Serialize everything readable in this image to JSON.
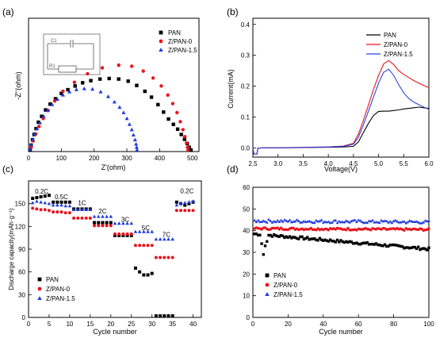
{
  "colors": {
    "PAN": "#000000",
    "Z/PAN-0": "#e8141c",
    "Z/PAN-1.5": "#1f3ad9",
    "CV_PAN": "#000000",
    "CV_Z/PAN-0": "#e8141c",
    "CV_Z/PAN-1.5": "#2b45e0"
  },
  "chart_data": [
    {
      "panel_label": "(a)",
      "type": "scatter",
      "xlabel": "Z'(ohm)",
      "ylabel": "-Z''(ohm)",
      "xlim": [
        0,
        520
      ],
      "ylim": [
        0,
        250
      ],
      "xticks": [
        0,
        100,
        200,
        300,
        400,
        500
      ],
      "yticks": [],
      "legend_position": "top-right",
      "inset_labels": [
        "C1",
        "R1"
      ],
      "series": [
        {
          "name": "PAN",
          "marker": "square",
          "points": [
            [
              5,
              3
            ],
            [
              8,
              12
            ],
            [
              12,
              22
            ],
            [
              17,
              32
            ],
            [
              23,
              43
            ],
            [
              30,
              55
            ],
            [
              40,
              66
            ],
            [
              52,
              78
            ],
            [
              66,
              89
            ],
            [
              82,
              99
            ],
            [
              100,
              109
            ],
            [
              120,
              116
            ],
            [
              142,
              123
            ],
            [
              165,
              129
            ],
            [
              190,
              133
            ],
            [
              218,
              136
            ],
            [
              246,
              137
            ],
            [
              275,
              136
            ],
            [
              304,
              132
            ],
            [
              330,
              124
            ],
            [
              355,
              113
            ],
            [
              375,
              102
            ],
            [
              395,
              88
            ],
            [
              412,
              74
            ],
            [
              427,
              61
            ],
            [
              442,
              51
            ],
            [
              455,
              42
            ],
            [
              466,
              32
            ],
            [
              476,
              23
            ],
            [
              484,
              15
            ],
            [
              490,
              8
            ],
            [
              494,
              3
            ]
          ]
        },
        {
          "name": "Z/PAN-0",
          "marker": "circle",
          "points": [
            [
              8,
              8
            ],
            [
              14,
              20
            ],
            [
              22,
              33
            ],
            [
              32,
              47
            ],
            [
              45,
              62
            ],
            [
              60,
              77
            ],
            [
              80,
              95
            ],
            [
              105,
              113
            ],
            [
              140,
              130
            ],
            [
              180,
              146
            ],
            [
              225,
              157
            ],
            [
              275,
              162
            ],
            [
              315,
              160
            ],
            [
              350,
              151
            ],
            [
              380,
              138
            ],
            [
              405,
              123
            ],
            [
              425,
              106
            ],
            [
              440,
              90
            ],
            [
              453,
              73
            ],
            [
              463,
              56
            ],
            [
              471,
              41
            ],
            [
              477,
              28
            ],
            [
              482,
              16
            ],
            [
              485,
              8
            ],
            [
              487,
              3
            ]
          ]
        },
        {
          "name": "Z/PAN-1.5",
          "marker": "triangle",
          "points": [
            [
              4,
              4
            ],
            [
              8,
              13
            ],
            [
              13,
              23
            ],
            [
              19,
              33
            ],
            [
              26,
              43
            ],
            [
              35,
              54
            ],
            [
              46,
              66
            ],
            [
              58,
              77
            ],
            [
              72,
              88
            ],
            [
              88,
              98
            ],
            [
              105,
              106
            ],
            [
              125,
              112
            ],
            [
              146,
              116
            ],
            [
              170,
              118
            ],
            [
              195,
              117
            ],
            [
              220,
              112
            ],
            [
              243,
              103
            ],
            [
              262,
              93
            ],
            [
              278,
              83
            ],
            [
              290,
              73
            ],
            [
              300,
              62
            ],
            [
              308,
              51
            ],
            [
              315,
              41
            ],
            [
              320,
              31
            ],
            [
              325,
              22
            ],
            [
              328,
              14
            ],
            [
              330,
              8
            ],
            [
              331,
              3
            ]
          ]
        }
      ]
    },
    {
      "panel_label": "(b)",
      "type": "line",
      "xlabel": "Voltage(V)",
      "ylabel": "Current(mA)",
      "xlim": [
        2.5,
        6.0
      ],
      "ylim": [
        -0.03,
        0.42
      ],
      "xticks": [
        2.5,
        3.0,
        3.5,
        4.0,
        4.5,
        5.0,
        5.5,
        6.0
      ],
      "yticks": [
        0.0,
        0.1,
        0.2,
        0.3,
        0.4
      ],
      "legend_position": "top-left",
      "series": [
        {
          "name": "PAN",
          "points": [
            [
              2.5,
              0
            ],
            [
              2.52,
              -0.02
            ],
            [
              2.58,
              -0.02
            ],
            [
              2.6,
              -0.001
            ],
            [
              2.7,
              0.0
            ],
            [
              3.0,
              0.0
            ],
            [
              3.5,
              0.001
            ],
            [
              4.0,
              0.002
            ],
            [
              4.3,
              0.003
            ],
            [
              4.5,
              0.005
            ],
            [
              4.6,
              0.02
            ],
            [
              4.7,
              0.05
            ],
            [
              4.8,
              0.08
            ],
            [
              4.9,
              0.105
            ],
            [
              5.0,
              0.118
            ],
            [
              5.1,
              0.119
            ],
            [
              5.2,
              0.119
            ],
            [
              5.3,
              0.121
            ],
            [
              5.4,
              0.123
            ],
            [
              5.5,
              0.126
            ],
            [
              5.6,
              0.128
            ],
            [
              5.7,
              0.13
            ],
            [
              5.8,
              0.132
            ],
            [
              5.9,
              0.13
            ],
            [
              6.0,
              0.128
            ]
          ]
        },
        {
          "name": "Z/PAN-0",
          "points": [
            [
              2.5,
              0
            ],
            [
              2.52,
              -0.02
            ],
            [
              2.58,
              -0.02
            ],
            [
              2.6,
              -0.001
            ],
            [
              2.7,
              0.0
            ],
            [
              3.0,
              0.0
            ],
            [
              3.5,
              0.002
            ],
            [
              4.0,
              0.003
            ],
            [
              4.3,
              0.006
            ],
            [
              4.5,
              0.015
            ],
            [
              4.6,
              0.045
            ],
            [
              4.7,
              0.09
            ],
            [
              4.8,
              0.14
            ],
            [
              4.9,
              0.19
            ],
            [
              5.0,
              0.235
            ],
            [
              5.1,
              0.272
            ],
            [
              5.2,
              0.283
            ],
            [
              5.3,
              0.27
            ],
            [
              5.4,
              0.25
            ],
            [
              5.5,
              0.238
            ],
            [
              5.6,
              0.228
            ],
            [
              5.7,
              0.218
            ],
            [
              5.8,
              0.21
            ],
            [
              5.9,
              0.202
            ],
            [
              6.0,
              0.195
            ]
          ]
        },
        {
          "name": "Z/PAN-1.5",
          "points": [
            [
              2.5,
              0
            ],
            [
              2.52,
              -0.02
            ],
            [
              2.58,
              -0.02
            ],
            [
              2.6,
              -0.001
            ],
            [
              2.7,
              0.0
            ],
            [
              3.0,
              0.0
            ],
            [
              3.5,
              0.001
            ],
            [
              4.0,
              0.003
            ],
            [
              4.3,
              0.005
            ],
            [
              4.5,
              0.012
            ],
            [
              4.6,
              0.035
            ],
            [
              4.7,
              0.075
            ],
            [
              4.8,
              0.12
            ],
            [
              4.9,
              0.165
            ],
            [
              5.0,
              0.21
            ],
            [
              5.1,
              0.245
            ],
            [
              5.2,
              0.255
            ],
            [
              5.3,
              0.235
            ],
            [
              5.4,
              0.205
            ],
            [
              5.5,
              0.178
            ],
            [
              5.6,
              0.16
            ],
            [
              5.7,
              0.148
            ],
            [
              5.8,
              0.14
            ],
            [
              5.9,
              0.132
            ],
            [
              6.0,
              0.125
            ]
          ]
        }
      ]
    },
    {
      "panel_label": "(c)",
      "type": "scatter",
      "xlabel": "Cycle number",
      "ylabel": "Discharge capacity(mAh·g⁻¹)",
      "xlim": [
        0,
        42
      ],
      "ylim": [
        0,
        180
      ],
      "xticks": [
        0,
        5,
        10,
        15,
        20,
        25,
        30,
        35,
        40
      ],
      "yticks": [
        0,
        30,
        60,
        90,
        120,
        150
      ],
      "legend_position": "bottom-left",
      "annotations": [
        {
          "text": "0.2C",
          "x": 3.2,
          "y": 163
        },
        {
          "text": "0.5C",
          "x": 8.0,
          "y": 156
        },
        {
          "text": "1C",
          "x": 13.0,
          "y": 148
        },
        {
          "text": "2C",
          "x": 18.0,
          "y": 137
        },
        {
          "text": "3C",
          "x": 23.5,
          "y": 126
        },
        {
          "text": "5C",
          "x": 28.5,
          "y": 115
        },
        {
          "text": "7C",
          "x": 33.5,
          "y": 106
        },
        {
          "text": "0.2C",
          "x": 38.5,
          "y": 164
        }
      ],
      "series": [
        {
          "name": "PAN",
          "marker": "square",
          "x": [
            1,
            2,
            3,
            4,
            5,
            6,
            7,
            8,
            9,
            10,
            11,
            12,
            13,
            14,
            15,
            16,
            17,
            18,
            19,
            20,
            21,
            22,
            23,
            24,
            25,
            26,
            27,
            28,
            29,
            30,
            31,
            32,
            33,
            34,
            35,
            36,
            37,
            38,
            39,
            40
          ],
          "values": [
            157,
            158,
            159,
            160,
            161,
            152,
            152,
            152,
            152,
            152,
            143,
            143,
            143,
            143,
            143,
            125,
            125,
            125,
            125,
            125,
            108,
            108,
            108,
            108,
            108,
            65,
            60,
            56,
            56,
            58,
            2,
            2,
            2,
            2,
            2,
            152,
            150,
            148,
            150,
            152
          ]
        },
        {
          "name": "Z/PAN-0",
          "marker": "circle",
          "x": [
            1,
            2,
            3,
            4,
            5,
            6,
            7,
            8,
            9,
            10,
            11,
            12,
            13,
            14,
            15,
            16,
            17,
            18,
            19,
            20,
            21,
            22,
            23,
            24,
            25,
            26,
            27,
            28,
            29,
            30,
            31,
            32,
            33,
            34,
            35,
            36,
            37,
            38,
            39,
            40
          ],
          "values": [
            144,
            143,
            142,
            142,
            141,
            139,
            139,
            139,
            138,
            138,
            131,
            131,
            131,
            131,
            131,
            121,
            121,
            121,
            121,
            121,
            110,
            110,
            110,
            110,
            110,
            95,
            95,
            95,
            95,
            95,
            79,
            79,
            79,
            79,
            79,
            141,
            141,
            141,
            141,
            141
          ]
        },
        {
          "name": "Z/PAN-1.5",
          "marker": "triangle",
          "x": [
            1,
            2,
            3,
            4,
            5,
            6,
            7,
            8,
            9,
            10,
            11,
            12,
            13,
            14,
            15,
            16,
            17,
            18,
            19,
            20,
            21,
            22,
            23,
            24,
            25,
            26,
            27,
            28,
            29,
            30,
            31,
            32,
            33,
            34,
            35,
            36,
            37,
            38,
            39,
            40
          ],
          "values": [
            151,
            153,
            152,
            151,
            150,
            148,
            148,
            148,
            147,
            147,
            142,
            142,
            142,
            142,
            142,
            133,
            133,
            133,
            133,
            133,
            124,
            124,
            124,
            124,
            124,
            113,
            113,
            113,
            113,
            113,
            103,
            103,
            103,
            103,
            103,
            148,
            150,
            151,
            152,
            153
          ]
        }
      ]
    },
    {
      "panel_label": "(d)",
      "type": "scatter",
      "xlabel": "Cycle number",
      "ylabel": "",
      "xlim": [
        0,
        100
      ],
      "ylim": [
        0,
        60
      ],
      "xticks": [
        0,
        20,
        40,
        60,
        80,
        100
      ],
      "yticks": [
        0,
        10,
        20,
        30,
        40,
        50,
        60
      ],
      "legend_position": "bottom-left",
      "series": [
        {
          "name": "PAN",
          "marker": "square",
          "start": 38.5,
          "end": 31.5,
          "dip": [
            [
              5,
              34
            ],
            [
              6,
              29
            ],
            [
              7,
              33
            ],
            [
              8,
              35
            ]
          ],
          "noise": 0.6
        },
        {
          "name": "Z/PAN-0",
          "marker": "circle",
          "start": 41.0,
          "end": 40.5,
          "dip": [],
          "noise": 0.5
        },
        {
          "name": "Z/PAN-1.5",
          "marker": "triangle",
          "start": 44.5,
          "end": 44.0,
          "dip": [],
          "noise": 0.7
        }
      ]
    }
  ]
}
